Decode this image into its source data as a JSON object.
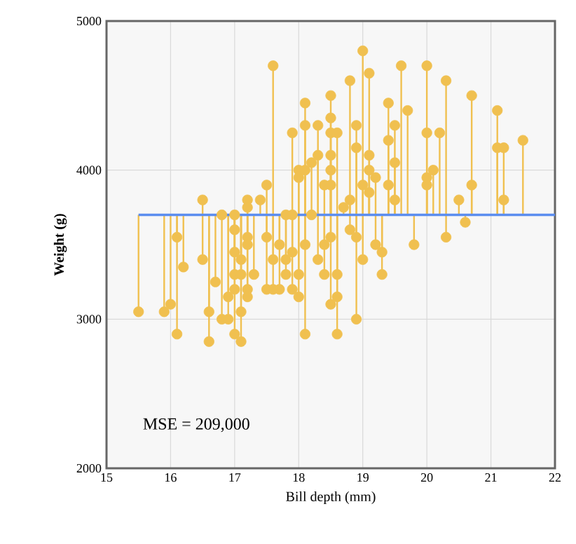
{
  "chart_data": {
    "type": "scatter",
    "xlabel": "Bill depth (mm)",
    "ylabel": "Weight (g)",
    "x": [
      15.5,
      15.9,
      16.0,
      16.1,
      16.1,
      16.2,
      16.5,
      16.5,
      16.6,
      16.6,
      16.7,
      16.8,
      16.9,
      16.8,
      16.9,
      17.0,
      17.0,
      17.0,
      17.0,
      17.0,
      17.0,
      17.1,
      17.1,
      17.1,
      17.1,
      17.2,
      17.2,
      17.2,
      17.2,
      17.2,
      17.2,
      17.3,
      17.4,
      17.5,
      17.5,
      17.5,
      17.6,
      17.6,
      17.6,
      17.7,
      17.7,
      17.8,
      17.8,
      17.8,
      17.9,
      17.9,
      17.9,
      17.9,
      18.0,
      18.0,
      18.0,
      18.0,
      18.1,
      18.1,
      18.1,
      18.1,
      18.1,
      18.2,
      18.2,
      18.3,
      18.3,
      18.3,
      18.4,
      18.4,
      18.4,
      18.5,
      18.5,
      18.5,
      18.5,
      18.5,
      18.5,
      18.5,
      18.5,
      18.6,
      18.6,
      18.6,
      18.6,
      18.7,
      18.8,
      18.8,
      18.8,
      18.9,
      18.9,
      18.9,
      18.9,
      19.0,
      19.0,
      19.0,
      19.1,
      19.1,
      19.1,
      19.1,
      19.2,
      19.2,
      19.3,
      19.3,
      19.4,
      19.4,
      19.4,
      19.5,
      19.5,
      19.5,
      19.6,
      19.7,
      19.8,
      20.0,
      20.0,
      20.0,
      20.0,
      20.1,
      20.2,
      20.3,
      20.3,
      20.5,
      20.6,
      20.7,
      20.7,
      21.1,
      21.1,
      21.2,
      21.2,
      21.5
    ],
    "values": [
      3050,
      3050,
      3100,
      2900,
      3550,
      3350,
      3800,
      3400,
      3050,
      2850,
      3250,
      3000,
      3000,
      3700,
      3150,
      3700,
      3600,
      3450,
      3300,
      3200,
      2900,
      3050,
      2850,
      3400,
      3300,
      3800,
      3750,
      3550,
      3500,
      3200,
      3150,
      3300,
      3800,
      3900,
      3550,
      3200,
      4700,
      3400,
      3200,
      3200,
      3500,
      3700,
      3300,
      3400,
      4250,
      3700,
      3450,
      3200,
      4000,
      3950,
      3150,
      3300,
      4450,
      4300,
      4000,
      3500,
      2900,
      4050,
      3700,
      4300,
      4100,
      3400,
      3900,
      3300,
      3500,
      4500,
      4350,
      4250,
      4100,
      4000,
      3900,
      3550,
      3100,
      4250,
      3300,
      3150,
      2900,
      3750,
      4600,
      3800,
      3600,
      4300,
      4150,
      3550,
      3000,
      4800,
      3900,
      3400,
      4650,
      4100,
      4000,
      3850,
      3950,
      3500,
      3450,
      3300,
      4450,
      4200,
      3900,
      4300,
      4050,
      3800,
      4700,
      4400,
      3500,
      4700,
      4250,
      3950,
      3900,
      4000,
      4250,
      4600,
      3550,
      3800,
      3650,
      4500,
      3900,
      4400,
      4150,
      4150,
      3800,
      4200
    ],
    "errors": [
      [
        3050,
        3700
      ],
      [
        3050,
        3700
      ],
      [
        3100,
        3700
      ],
      [
        2900,
        3700
      ],
      [
        3550,
        3700
      ],
      [
        3350,
        3700
      ],
      [
        3700,
        3800
      ],
      [
        3400,
        3700
      ],
      [
        3050,
        3700
      ],
      [
        2850,
        3700
      ],
      [
        3250,
        3700
      ],
      [
        3000,
        3700
      ],
      [
        3000,
        3700
      ],
      null,
      [
        3150,
        3700
      ],
      null,
      [
        3600,
        3700
      ],
      [
        3450,
        3700
      ],
      [
        3300,
        3700
      ],
      [
        3200,
        3700
      ],
      [
        2900,
        3700
      ],
      [
        3050,
        3700
      ],
      [
        2850,
        3700
      ],
      [
        3400,
        3700
      ],
      [
        3300,
        3700
      ],
      [
        3700,
        3800
      ],
      [
        3700,
        3750
      ],
      [
        3550,
        3700
      ],
      [
        3500,
        3700
      ],
      [
        3200,
        3700
      ],
      [
        3150,
        3700
      ],
      [
        3300,
        3700
      ],
      [
        3700,
        3800
      ],
      [
        3700,
        3900
      ],
      [
        3550,
        3700
      ],
      [
        3200,
        3700
      ],
      [
        3700,
        4700
      ],
      [
        3400,
        3700
      ],
      [
        3200,
        3700
      ],
      [
        3200,
        3700
      ],
      [
        3500,
        3700
      ],
      null,
      [
        3300,
        3700
      ],
      [
        3400,
        3700
      ],
      [
        3700,
        4250
      ],
      null,
      [
        3450,
        3700
      ],
      [
        3200,
        3700
      ],
      [
        3700,
        4000
      ],
      [
        3700,
        3950
      ],
      [
        3150,
        3700
      ],
      [
        3300,
        3700
      ],
      [
        3700,
        4450
      ],
      [
        3700,
        4300
      ],
      [
        3700,
        4000
      ],
      [
        3500,
        3700
      ],
      [
        2900,
        3700
      ],
      [
        3700,
        4050
      ],
      null,
      [
        3700,
        4300
      ],
      [
        3700,
        4100
      ],
      [
        3400,
        3700
      ],
      [
        3700,
        3900
      ],
      [
        3300,
        3700
      ],
      [
        3500,
        3700
      ],
      [
        3700,
        4500
      ],
      [
        3700,
        4350
      ],
      [
        3700,
        4250
      ],
      [
        3700,
        4100
      ],
      [
        3700,
        4000
      ],
      [
        3700,
        3900
      ],
      [
        3550,
        3700
      ],
      [
        3100,
        3700
      ],
      [
        3700,
        4250
      ],
      [
        3300,
        3700
      ],
      [
        3150,
        3700
      ],
      [
        2900,
        3700
      ],
      [
        3700,
        3750
      ],
      [
        3700,
        4600
      ],
      [
        3700,
        3800
      ],
      [
        3600,
        3700
      ],
      [
        3700,
        4300
      ],
      [
        3700,
        4150
      ],
      [
        3550,
        3700
      ],
      [
        3000,
        3700
      ],
      [
        3700,
        4800
      ],
      [
        3700,
        3900
      ],
      [
        3400,
        3700
      ],
      [
        3700,
        4650
      ],
      [
        3700,
        4100
      ],
      [
        3700,
        4000
      ],
      [
        3700,
        3850
      ],
      [
        3700,
        3950
      ],
      [
        3500,
        3700
      ],
      [
        3450,
        3700
      ],
      [
        3300,
        3700
      ],
      [
        3700,
        4450
      ],
      [
        3700,
        4200
      ],
      [
        3700,
        3900
      ],
      [
        3700,
        4300
      ],
      [
        3700,
        4050
      ],
      [
        3700,
        3800
      ],
      [
        3700,
        4700
      ],
      [
        3700,
        4400
      ],
      [
        3500,
        3700
      ],
      [
        3700,
        4700
      ],
      [
        3700,
        4250
      ],
      [
        3700,
        3950
      ],
      [
        3700,
        3900
      ],
      [
        3700,
        4000
      ],
      [
        3700,
        4250
      ],
      [
        3700,
        4600
      ],
      [
        3550,
        3700
      ],
      [
        3700,
        3800
      ],
      [
        3650,
        3700
      ],
      [
        3700,
        4500
      ],
      [
        3700,
        3900
      ],
      [
        3700,
        4400
      ],
      [
        3700,
        4150
      ],
      [
        3700,
        4150
      ],
      [
        3700,
        3800
      ],
      [
        3700,
        4200
      ]
    ],
    "color": "#f0c050",
    "marker": "circle",
    "xlim": [
      15,
      22
    ],
    "xticks": [
      15,
      16,
      17,
      18,
      19,
      20,
      21,
      22
    ],
    "ylim": [
      2000,
      5000
    ],
    "yticks": [
      2000,
      3000,
      4000,
      5000
    ],
    "grid": true,
    "ref_lines": [
      {
        "axis": "y",
        "value": 3700,
        "color": "#5b8def"
      }
    ],
    "annotations": [
      "MSE = 209,000"
    ]
  }
}
